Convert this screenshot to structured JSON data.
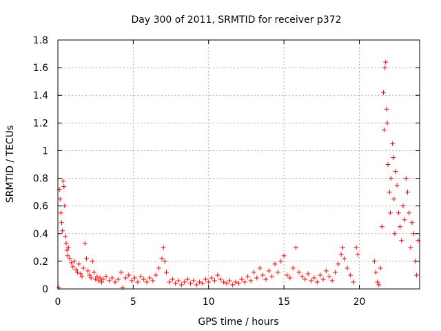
{
  "chart_data": {
    "type": "scatter",
    "title": "Day 300 of 2011, SRMTID for receiver p372",
    "xlabel": "GPS time / hours",
    "ylabel": "SRMTID / TECUs",
    "xlim": [
      0,
      24
    ],
    "ylim": [
      0,
      1.8
    ],
    "xticks": [
      0,
      5,
      10,
      15,
      20
    ],
    "xtick_labels": [
      "0",
      "5",
      "10",
      "15",
      "20"
    ],
    "yticks": [
      0,
      0.2,
      0.4,
      0.6,
      0.8,
      1.0,
      1.2,
      1.4,
      1.6,
      1.8
    ],
    "ytick_labels": [
      "0",
      "0.2",
      "0.4",
      "0.6",
      "0.8",
      "1",
      "1.2",
      "1.4",
      "1.6",
      "1.8"
    ],
    "grid": true,
    "marker": "plus",
    "color": "#ff0000",
    "series": [
      {
        "name": "SRMTID",
        "points": [
          [
            0.05,
            0.01
          ],
          [
            0.1,
            0.72
          ],
          [
            0.15,
            0.65
          ],
          [
            0.2,
            0.55
          ],
          [
            0.25,
            0.48
          ],
          [
            0.3,
            0.42
          ],
          [
            0.35,
            0.78
          ],
          [
            0.4,
            0.74
          ],
          [
            0.45,
            0.6
          ],
          [
            0.5,
            0.38
          ],
          [
            0.55,
            0.33
          ],
          [
            0.6,
            0.28
          ],
          [
            0.65,
            0.24
          ],
          [
            0.7,
            0.3
          ],
          [
            0.8,
            0.22
          ],
          [
            0.9,
            0.19
          ],
          [
            1.0,
            0.16
          ],
          [
            1.1,
            0.2
          ],
          [
            1.2,
            0.14
          ],
          [
            1.3,
            0.12
          ],
          [
            1.4,
            0.18
          ],
          [
            1.5,
            0.11
          ],
          [
            1.6,
            0.09
          ],
          [
            1.7,
            0.15
          ],
          [
            1.8,
            0.33
          ],
          [
            1.9,
            0.22
          ],
          [
            2.0,
            0.13
          ],
          [
            2.1,
            0.1
          ],
          [
            2.2,
            0.08
          ],
          [
            2.3,
            0.2
          ],
          [
            2.4,
            0.12
          ],
          [
            2.5,
            0.07
          ],
          [
            2.6,
            0.09
          ],
          [
            2.7,
            0.06
          ],
          [
            2.8,
            0.08
          ],
          [
            2.9,
            0.05
          ],
          [
            3.0,
            0.07
          ],
          [
            3.2,
            0.09
          ],
          [
            3.4,
            0.06
          ],
          [
            3.6,
            0.08
          ],
          [
            3.8,
            0.05
          ],
          [
            4.0,
            0.07
          ],
          [
            4.2,
            0.12
          ],
          [
            4.3,
            0.01
          ],
          [
            4.5,
            0.08
          ],
          [
            4.7,
            0.1
          ],
          [
            4.9,
            0.06
          ],
          [
            5.1,
            0.08
          ],
          [
            5.3,
            0.05
          ],
          [
            5.5,
            0.09
          ],
          [
            5.7,
            0.07
          ],
          [
            5.9,
            0.05
          ],
          [
            6.1,
            0.08
          ],
          [
            6.3,
            0.06
          ],
          [
            6.5,
            0.1
          ],
          [
            6.7,
            0.15
          ],
          [
            6.9,
            0.22
          ],
          [
            7.0,
            0.3
          ],
          [
            7.1,
            0.2
          ],
          [
            7.2,
            0.12
          ],
          [
            7.4,
            0.05
          ],
          [
            7.6,
            0.07
          ],
          [
            7.8,
            0.04
          ],
          [
            8.0,
            0.06
          ],
          [
            8.2,
            0.03
          ],
          [
            8.4,
            0.05
          ],
          [
            8.6,
            0.07
          ],
          [
            8.8,
            0.04
          ],
          [
            9.0,
            0.06
          ],
          [
            9.2,
            0.03
          ],
          [
            9.4,
            0.05
          ],
          [
            9.6,
            0.04
          ],
          [
            9.8,
            0.07
          ],
          [
            10.0,
            0.05
          ],
          [
            10.2,
            0.08
          ],
          [
            10.4,
            0.06
          ],
          [
            10.6,
            0.1
          ],
          [
            10.8,
            0.07
          ],
          [
            11.0,
            0.05
          ],
          [
            11.2,
            0.04
          ],
          [
            11.4,
            0.06
          ],
          [
            11.6,
            0.03
          ],
          [
            11.8,
            0.05
          ],
          [
            12.0,
            0.04
          ],
          [
            12.2,
            0.07
          ],
          [
            12.4,
            0.05
          ],
          [
            12.6,
            0.09
          ],
          [
            12.8,
            0.06
          ],
          [
            13.0,
            0.12
          ],
          [
            13.2,
            0.08
          ],
          [
            13.4,
            0.15
          ],
          [
            13.6,
            0.1
          ],
          [
            13.8,
            0.07
          ],
          [
            14.0,
            0.13
          ],
          [
            14.2,
            0.09
          ],
          [
            14.4,
            0.18
          ],
          [
            14.6,
            0.12
          ],
          [
            14.8,
            0.2
          ],
          [
            15.0,
            0.24
          ],
          [
            15.2,
            0.1
          ],
          [
            15.4,
            0.08
          ],
          [
            15.6,
            0.15
          ],
          [
            15.8,
            0.3
          ],
          [
            16.0,
            0.12
          ],
          [
            16.2,
            0.09
          ],
          [
            16.4,
            0.07
          ],
          [
            16.6,
            0.11
          ],
          [
            16.8,
            0.06
          ],
          [
            17.0,
            0.08
          ],
          [
            17.2,
            0.05
          ],
          [
            17.4,
            0.1
          ],
          [
            17.6,
            0.07
          ],
          [
            17.8,
            0.13
          ],
          [
            18.0,
            0.09
          ],
          [
            18.2,
            0.06
          ],
          [
            18.4,
            0.12
          ],
          [
            18.6,
            0.18
          ],
          [
            18.8,
            0.25
          ],
          [
            18.9,
            0.3
          ],
          [
            19.0,
            0.22
          ],
          [
            19.2,
            0.15
          ],
          [
            19.4,
            0.1
          ],
          [
            19.6,
            0.05
          ],
          [
            19.8,
            0.3
          ],
          [
            19.9,
            0.25
          ],
          [
            21.0,
            0.2
          ],
          [
            21.1,
            0.12
          ],
          [
            21.2,
            0.05
          ],
          [
            21.3,
            0.03
          ],
          [
            21.4,
            0.15
          ],
          [
            21.5,
            0.45
          ],
          [
            21.6,
            1.42
          ],
          [
            21.65,
            1.15
          ],
          [
            21.7,
            1.6
          ],
          [
            21.75,
            1.64
          ],
          [
            21.8,
            1.3
          ],
          [
            21.85,
            1.2
          ],
          [
            21.9,
            0.9
          ],
          [
            22.0,
            0.7
          ],
          [
            22.05,
            0.55
          ],
          [
            22.1,
            0.8
          ],
          [
            22.2,
            1.05
          ],
          [
            22.25,
            0.95
          ],
          [
            22.3,
            0.65
          ],
          [
            22.35,
            0.4
          ],
          [
            22.4,
            0.85
          ],
          [
            22.5,
            0.75
          ],
          [
            22.6,
            0.55
          ],
          [
            22.7,
            0.45
          ],
          [
            22.8,
            0.35
          ],
          [
            22.9,
            0.6
          ],
          [
            23.0,
            0.5
          ],
          [
            23.1,
            0.8
          ],
          [
            23.2,
            0.7
          ],
          [
            23.3,
            0.55
          ],
          [
            23.4,
            0.3
          ],
          [
            23.5,
            0.48
          ],
          [
            23.6,
            0.4
          ],
          [
            23.7,
            0.2
          ],
          [
            23.8,
            0.1
          ],
          [
            23.9,
            0.35
          ]
        ]
      }
    ]
  }
}
